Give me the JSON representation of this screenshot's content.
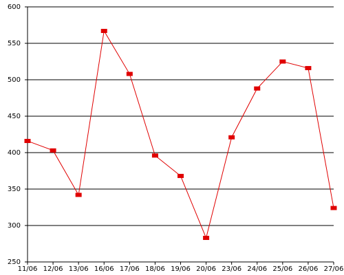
{
  "chart_data": {
    "type": "line",
    "categories": [
      "11/06",
      "12/06",
      "13/06",
      "16/06",
      "17/06",
      "18/06",
      "19/06",
      "20/06",
      "23/06",
      "24/06",
      "25/06",
      "26/06",
      "27/06"
    ],
    "series": [
      {
        "color": "#e00000",
        "values": [
          416,
          403,
          342,
          567,
          508,
          396,
          368,
          283,
          421,
          488,
          525,
          516,
          324
        ]
      }
    ],
    "ylim": [
      250,
      600
    ],
    "yticks": [
      250,
      300,
      350,
      400,
      450,
      500,
      550,
      600
    ],
    "grid": true
  }
}
